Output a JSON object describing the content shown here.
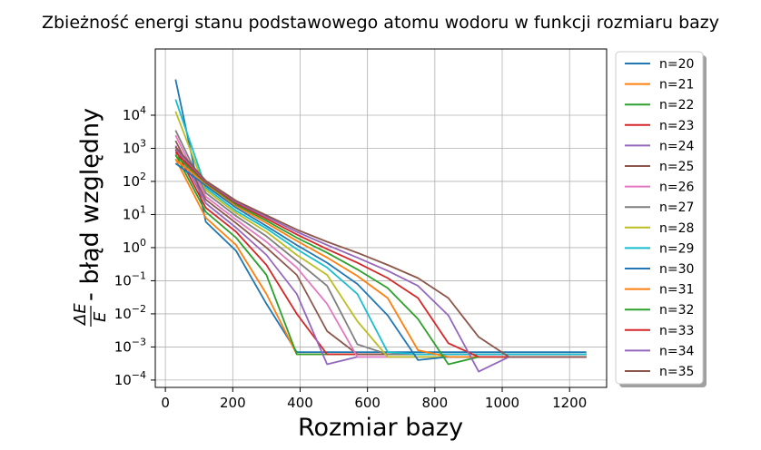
{
  "chart_data": {
    "type": "line",
    "title": "Zbieżność energi stanu podstawowego atomu wodoru w funkcji rozmiaru bazy",
    "xlabel": "Rozmiar bazy",
    "ylabel_fraction": "ΔE/E",
    "ylabel_text": " - błąd względny",
    "yscale": "log",
    "xlim": [
      -30,
      1310
    ],
    "ylim": [
      6e-05,
      1000000
    ],
    "x_ticks": [
      0,
      200,
      400,
      600,
      800,
      1000,
      1200
    ],
    "y_ticks": [
      {
        "value": 0.0001,
        "base": "10",
        "exp": "−4"
      },
      {
        "value": 0.001,
        "base": "10",
        "exp": "−3"
      },
      {
        "value": 0.01,
        "base": "10",
        "exp": "−2"
      },
      {
        "value": 0.1,
        "base": "10",
        "exp": "−1"
      },
      {
        "value": 1,
        "base": "10",
        "exp": "0"
      },
      {
        "value": 10,
        "base": "10",
        "exp": "1"
      },
      {
        "value": 100,
        "base": "10",
        "exp": "2"
      },
      {
        "value": 1000,
        "base": "10",
        "exp": "3"
      },
      {
        "value": 10000,
        "base": "10",
        "exp": "4"
      }
    ],
    "grid": true,
    "legend_position": "outside-right",
    "series": [
      {
        "name": "n=20",
        "color": "#1f77b4",
        "x": [
          30,
          120,
          210,
          300,
          390,
          480,
          570,
          660,
          750,
          840,
          930,
          1020,
          1110,
          1250
        ],
        "y": [
          120000,
          6,
          0.8,
          0.02,
          0.0007,
          0.0007,
          0.0007,
          0.0007,
          0.0007,
          0.0007,
          0.0007,
          0.0007,
          0.0007,
          0.0007
        ]
      },
      {
        "name": "n=21",
        "color": "#ff7f0e",
        "x": [
          30,
          120,
          210,
          300,
          390,
          480,
          570,
          660,
          750,
          840,
          930,
          1020,
          1110,
          1250
        ],
        "y": [
          480,
          8,
          1.2,
          0.04,
          0.0006,
          0.0006,
          0.0006,
          0.0006,
          0.0006,
          0.0006,
          0.0006,
          0.0006,
          0.0006,
          0.0006
        ]
      },
      {
        "name": "n=22",
        "color": "#2ca02c",
        "x": [
          30,
          120,
          210,
          300,
          390,
          480,
          570,
          660,
          750,
          840,
          930,
          1020,
          1110,
          1250
        ],
        "y": [
          650,
          12,
          2,
          0.15,
          0.0006,
          0.0006,
          0.0006,
          0.0006,
          0.0006,
          0.0006,
          0.0006,
          0.0006,
          0.0006,
          0.0006
        ]
      },
      {
        "name": "n=23",
        "color": "#d62728",
        "x": [
          30,
          120,
          210,
          300,
          390,
          480,
          570,
          660,
          750,
          840,
          930,
          1020,
          1110,
          1250
        ],
        "y": [
          900,
          16,
          3,
          0.3,
          0.01,
          0.0006,
          0.0006,
          0.0006,
          0.0006,
          0.0006,
          0.0006,
          0.0006,
          0.0006,
          0.0006
        ]
      },
      {
        "name": "n=24",
        "color": "#9467bd",
        "x": [
          30,
          120,
          210,
          300,
          390,
          480,
          570,
          660,
          750,
          840,
          930,
          1020,
          1110,
          1250
        ],
        "y": [
          1200,
          22,
          4,
          0.6,
          0.04,
          0.0003,
          0.0005,
          0.0005,
          0.0005,
          0.0005,
          0.0005,
          0.0005,
          0.0005,
          0.0005
        ]
      },
      {
        "name": "n=25",
        "color": "#8c564b",
        "x": [
          30,
          120,
          210,
          300,
          390,
          480,
          570,
          660,
          750,
          840,
          930,
          1020,
          1110,
          1250
        ],
        "y": [
          1700,
          28,
          5.5,
          1,
          0.15,
          0.003,
          0.0006,
          0.0006,
          0.0006,
          0.0006,
          0.0006,
          0.0006,
          0.0006,
          0.0006
        ]
      },
      {
        "name": "n=26",
        "color": "#e377c2",
        "x": [
          30,
          120,
          210,
          300,
          390,
          480,
          570,
          660,
          750,
          840,
          930,
          1020,
          1110,
          1250
        ],
        "y": [
          2500,
          35,
          7,
          1.5,
          0.25,
          0.02,
          0.0005,
          0.0005,
          0.0005,
          0.0005,
          0.0005,
          0.0005,
          0.0005,
          0.0005
        ]
      },
      {
        "name": "n=27",
        "color": "#7f7f7f",
        "x": [
          30,
          120,
          210,
          300,
          390,
          480,
          570,
          660,
          750,
          840,
          930,
          1020,
          1110,
          1250
        ],
        "y": [
          3500,
          45,
          9,
          2.2,
          0.4,
          0.07,
          0.0012,
          0.0006,
          0.0006,
          0.0006,
          0.0006,
          0.0006,
          0.0006,
          0.0006
        ]
      },
      {
        "name": "n=28",
        "color": "#bcbd22",
        "x": [
          30,
          120,
          210,
          300,
          390,
          480,
          570,
          660,
          750,
          840,
          930,
          1020,
          1110,
          1250
        ],
        "y": [
          13000,
          55,
          11,
          3,
          0.6,
          0.15,
          0.006,
          0.0005,
          0.0005,
          0.0005,
          0.0005,
          0.0005,
          0.0005,
          0.0005
        ]
      },
      {
        "name": "n=29",
        "color": "#17becf",
        "x": [
          30,
          120,
          210,
          300,
          390,
          480,
          570,
          660,
          750,
          840,
          930,
          1020,
          1110,
          1250
        ],
        "y": [
          30000,
          65,
          13,
          3.8,
          0.9,
          0.25,
          0.04,
          0.0007,
          0.0006,
          0.0006,
          0.0006,
          0.0006,
          0.0006,
          0.0006
        ]
      },
      {
        "name": "n=30",
        "color": "#1f77b4",
        "x": [
          30,
          120,
          210,
          300,
          390,
          480,
          570,
          660,
          750,
          840,
          930,
          1020,
          1110,
          1250
        ],
        "y": [
          350,
          75,
          16,
          4.5,
          1.2,
          0.35,
          0.08,
          0.009,
          0.0004,
          0.0005,
          0.0005,
          0.0005,
          0.0005,
          0.0005
        ]
      },
      {
        "name": "n=31",
        "color": "#ff7f0e",
        "x": [
          30,
          120,
          210,
          300,
          390,
          480,
          570,
          660,
          750,
          840,
          930,
          1020,
          1110,
          1250
        ],
        "y": [
          450,
          85,
          18,
          5.5,
          1.6,
          0.5,
          0.14,
          0.03,
          0.0008,
          0.0005,
          0.0005,
          0.0005,
          0.0005,
          0.0005
        ]
      },
      {
        "name": "n=32",
        "color": "#2ca02c",
        "x": [
          30,
          120,
          210,
          300,
          390,
          480,
          570,
          660,
          750,
          840,
          930,
          1020,
          1110,
          1250
        ],
        "y": [
          600,
          90,
          20,
          6.5,
          2,
          0.7,
          0.22,
          0.06,
          0.007,
          0.0003,
          0.0005,
          0.0005,
          0.0005,
          0.0005
        ]
      },
      {
        "name": "n=33",
        "color": "#d62728",
        "x": [
          30,
          120,
          210,
          300,
          390,
          480,
          570,
          660,
          750,
          840,
          930,
          1020,
          1110,
          1250
        ],
        "y": [
          750,
          95,
          22,
          7.5,
          2.5,
          0.9,
          0.35,
          0.12,
          0.03,
          0.0013,
          0.0005,
          0.0005,
          0.0005,
          0.0005
        ]
      },
      {
        "name": "n=34",
        "color": "#9467bd",
        "x": [
          30,
          120,
          210,
          300,
          390,
          480,
          570,
          660,
          750,
          840,
          930,
          1020,
          1110,
          1250
        ],
        "y": [
          950,
          100,
          24,
          8.5,
          3,
          1.2,
          0.5,
          0.2,
          0.07,
          0.009,
          0.00018,
          0.0005,
          0.0005,
          0.0005
        ]
      },
      {
        "name": "n=35",
        "color": "#8c564b",
        "x": [
          30,
          120,
          210,
          300,
          390,
          480,
          570,
          660,
          750,
          840,
          930,
          1020,
          1110,
          1250
        ],
        "y": [
          1100,
          105,
          26,
          9.5,
          3.5,
          1.5,
          0.7,
          0.3,
          0.12,
          0.03,
          0.002,
          0.0005,
          0.0005,
          0.0005
        ]
      }
    ]
  }
}
